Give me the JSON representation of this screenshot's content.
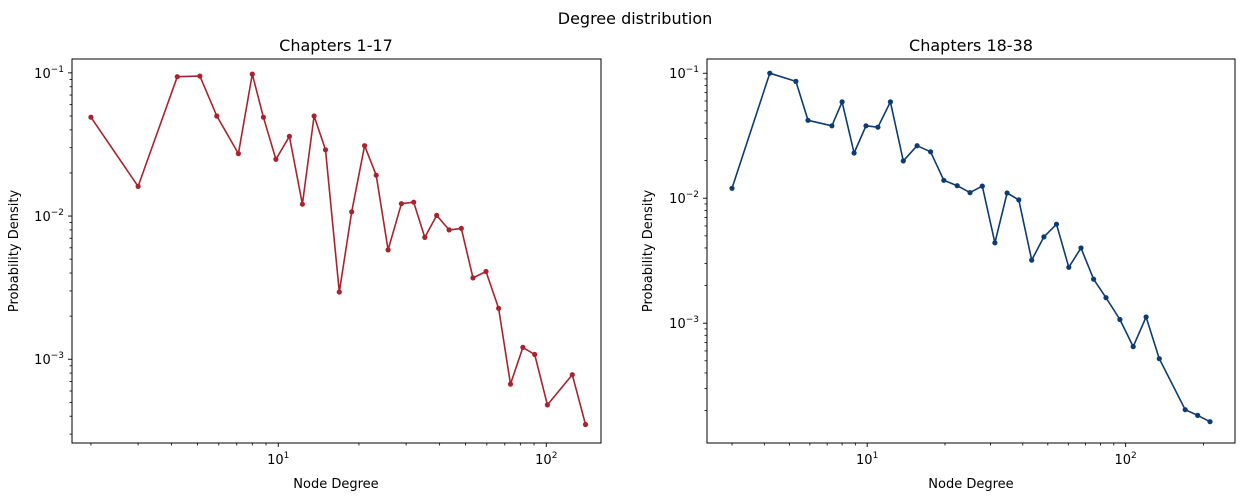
{
  "figure": {
    "suptitle": "Degree distribution"
  },
  "chart_data": [
    {
      "type": "line",
      "title": "Chapters 1-17",
      "xlabel": "Node Degree",
      "ylabel": "Probability Density",
      "xscale": "log",
      "yscale": "log",
      "xlim": [
        1.7,
        160
      ],
      "ylim": [
        0.00026,
        0.125
      ],
      "xticks": [
        {
          "value": 10,
          "base": "10",
          "exp": "1"
        },
        {
          "value": 100,
          "base": "10",
          "exp": "2"
        }
      ],
      "yticks": [
        {
          "value": 0.001,
          "base": "10",
          "exp": "−3"
        },
        {
          "value": 0.01,
          "base": "10",
          "exp": "−2"
        },
        {
          "value": 0.1,
          "base": "10",
          "exp": "−1"
        }
      ],
      "grid": false,
      "color": "#a8232e",
      "series": [
        {
          "x": [
            2,
            3,
            4.2,
            5.1,
            5.9,
            7.1,
            8,
            8.8,
            9.8,
            11,
            12.3,
            13.6,
            15,
            16.9,
            18.8,
            21,
            23.2,
            25.7,
            28.8,
            32,
            35.2,
            39,
            43.4,
            48.2,
            53.3,
            59.6,
            66.4,
            73.5,
            81.8,
            90.5,
            101,
            125,
            140
          ],
          "y": [
            0.049,
            0.0161,
            0.094,
            0.095,
            0.05,
            0.0273,
            0.098,
            0.049,
            0.0249,
            0.036,
            0.0121,
            0.05,
            0.029,
            0.00295,
            0.0107,
            0.031,
            0.0193,
            0.0058,
            0.0122,
            0.0125,
            0.0071,
            0.0101,
            0.008,
            0.0082,
            0.0037,
            0.0041,
            0.00227,
            0.00067,
            0.00121,
            0.00108,
            0.00048,
            0.00078,
            0.00035
          ]
        }
      ]
    },
    {
      "type": "line",
      "title": "Chapters 18-38",
      "xlabel": "Node Degree",
      "ylabel": "Probability Density",
      "xscale": "log",
      "yscale": "log",
      "xlim": [
        2.4,
        265
      ],
      "ylim": [
        0.00011,
        0.13
      ],
      "xticks": [
        {
          "value": 10,
          "base": "10",
          "exp": "1"
        },
        {
          "value": 100,
          "base": "10",
          "exp": "2"
        }
      ],
      "yticks": [
        {
          "value": 0.001,
          "base": "10",
          "exp": "−3"
        },
        {
          "value": 0.01,
          "base": "10",
          "exp": "−2"
        },
        {
          "value": 0.1,
          "base": "10",
          "exp": "−1"
        }
      ],
      "grid": false,
      "color": "#0c3c74",
      "series": [
        {
          "x": [
            3,
            4.2,
            5.3,
            5.9,
            7.3,
            8,
            8.9,
            9.9,
            11,
            12.3,
            13.8,
            15.6,
            17.6,
            19.8,
            22.3,
            25,
            27.9,
            31.2,
            34.8,
            38.6,
            43.3,
            48.3,
            54,
            60.3,
            67.2,
            75.2,
            84,
            95,
            107,
            120,
            135,
            170,
            190,
            212
          ],
          "y": [
            0.012,
            0.1,
            0.086,
            0.042,
            0.038,
            0.059,
            0.023,
            0.038,
            0.037,
            0.059,
            0.0199,
            0.0263,
            0.0235,
            0.0139,
            0.0126,
            0.0111,
            0.0125,
            0.0044,
            0.011,
            0.0097,
            0.0032,
            0.0049,
            0.0062,
            0.0028,
            0.004,
            0.00225,
            0.0016,
            0.00107,
            0.00065,
            0.00112,
            0.00052,
            0.000203,
            0.000183,
            0.000163
          ]
        }
      ]
    }
  ]
}
